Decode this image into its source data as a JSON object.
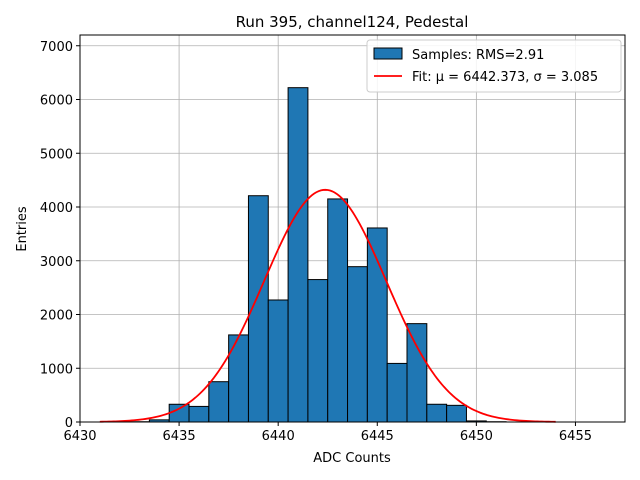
{
  "chart_data": {
    "type": "bar",
    "title": "Run 395, channel124, Pedestal",
    "xlabel": "ADC Counts",
    "ylabel": "Entries",
    "xlim": [
      6430,
      6457.5
    ],
    "ylim": [
      0,
      7200
    ],
    "xticks": [
      6430,
      6435,
      6440,
      6445,
      6450,
      6455
    ],
    "yticks": [
      0,
      1000,
      2000,
      3000,
      4000,
      5000,
      6000,
      7000
    ],
    "grid": true,
    "legend_position": "top-right",
    "bin_width": 1,
    "bars": [
      {
        "x": 6433,
        "value": 5
      },
      {
        "x": 6434,
        "value": 40
      },
      {
        "x": 6435,
        "value": 330
      },
      {
        "x": 6436,
        "value": 290
      },
      {
        "x": 6437,
        "value": 750
      },
      {
        "x": 6438,
        "value": 1620
      },
      {
        "x": 6439,
        "value": 4210
      },
      {
        "x": 6440,
        "value": 2270
      },
      {
        "x": 6441,
        "value": 6220
      },
      {
        "x": 6442,
        "value": 2650
      },
      {
        "x": 6443,
        "value": 4150
      },
      {
        "x": 6444,
        "value": 2890
      },
      {
        "x": 6445,
        "value": 3610
      },
      {
        "x": 6446,
        "value": 1090
      },
      {
        "x": 6447,
        "value": 1830
      },
      {
        "x": 6448,
        "value": 330
      },
      {
        "x": 6449,
        "value": 310
      },
      {
        "x": 6450,
        "value": 20
      },
      {
        "x": 6451,
        "value": 5
      }
    ],
    "bar_color": "#1f77b4",
    "fit": {
      "mu": 6442.373,
      "sigma": 3.085,
      "peak": 4320,
      "x_range": [
        6431,
        6454
      ],
      "color": "#ff0000"
    },
    "legend": [
      {
        "label": "Samples: RMS=2.91",
        "kind": "patch",
        "color": "#1f77b4"
      },
      {
        "label": "Fit: μ = 6442.373, σ = 3.085",
        "kind": "line",
        "color": "#ff0000"
      }
    ]
  }
}
